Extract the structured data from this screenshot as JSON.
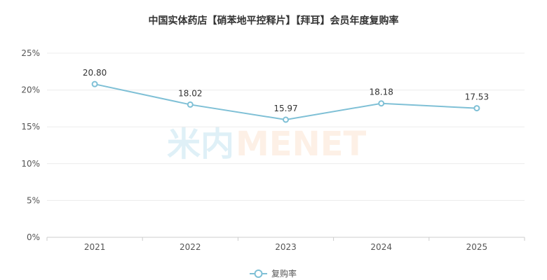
{
  "title": "中国实体药店【硝苯地平控释片】【拜耳】会员年度复购率",
  "watermark": {
    "left_text": "米内",
    "right_text": "MENET",
    "left_color": "#dff0f7",
    "right_color": "#fdf0e6"
  },
  "chart_data": {
    "type": "line",
    "title": "中国实体药店【硝苯地平控释片】【拜耳】会员年度复购率",
    "xlabel": "",
    "ylabel": "",
    "categories": [
      "2021",
      "2022",
      "2023",
      "2024",
      "2025"
    ],
    "ylim": [
      0,
      25
    ],
    "yticks": [
      0,
      5,
      10,
      15,
      20,
      25
    ],
    "ytick_labels": [
      "0%",
      "5%",
      "10%",
      "15%",
      "20%",
      "25%"
    ],
    "grid": true,
    "legend_position": "bottom-center",
    "series": [
      {
        "name": "复购率",
        "values": [
          20.8,
          18.02,
          15.97,
          18.18,
          17.53
        ],
        "labels": [
          "20.80",
          "18.02",
          "15.97",
          "18.18",
          "17.53"
        ],
        "color": "#7fc0d6"
      }
    ]
  }
}
